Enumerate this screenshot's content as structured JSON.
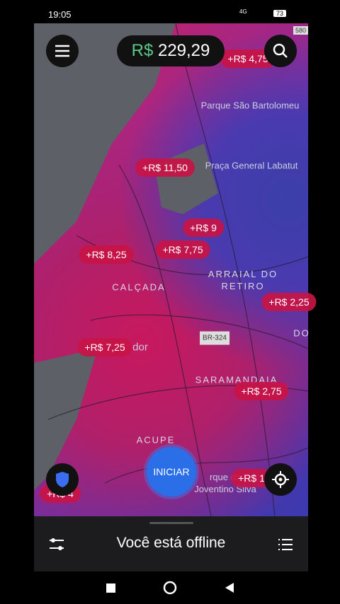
{
  "status_bar": {
    "time": "19:05",
    "network": "4G",
    "battery": "73"
  },
  "header": {
    "currency": "R$",
    "earnings": "229,29"
  },
  "surges": [
    "+R$ 4,75",
    "+R$ 11,50",
    "+R$ 9",
    "+R$ 8,25",
    "+R$ 7,75",
    "+R$ 2,25",
    "+R$ 7,25",
    "+R$ 2,75",
    "+R$ 1",
    "+R$ 4"
  ],
  "map_labels": {
    "route": "580",
    "park": "Parque São Bartolomeu",
    "square": "Praça General Labatut",
    "district_1": "ARRAIAL DO RETIRO",
    "district_2": "CALÇADA",
    "district_3": "SARAMANDAIA",
    "district_4": "ACUPE",
    "district_5": "DO",
    "highway": "BR-324",
    "city": "dor",
    "park_2": "rque da Joventino Silva"
  },
  "start_button": "INICIAR",
  "bottom_panel": {
    "status": "Você está offline"
  }
}
